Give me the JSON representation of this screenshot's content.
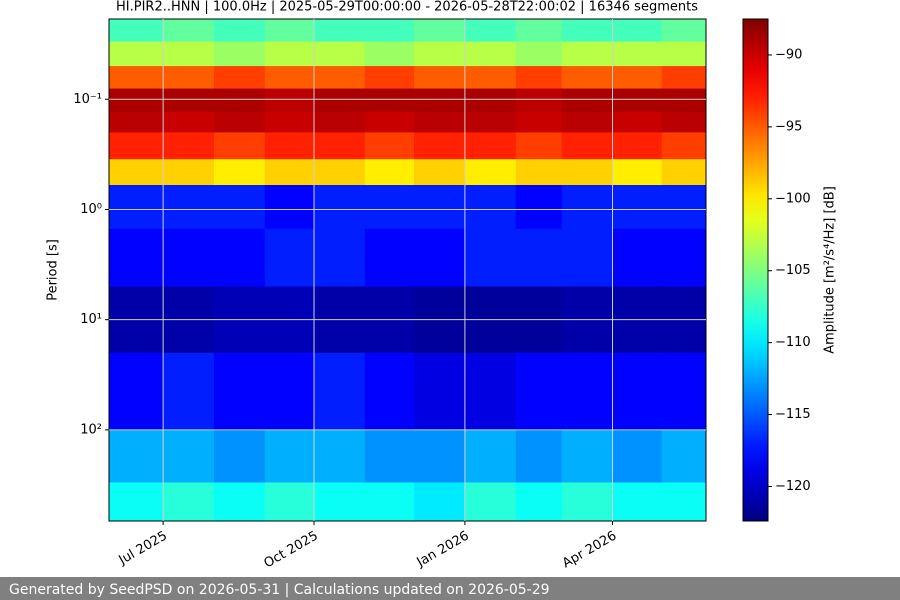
{
  "chart_data": {
    "type": "heatmap",
    "title": "HI.PIR2..HNN | 100.0Hz | 2025-05-29T00:00:00 - 2026-05-28T22:00:02 | 16346 segments",
    "ylabel": "Period [s]",
    "colorbar_label": "Amplitude [m²/s⁴/Hz] [dB]",
    "colormap": "jet",
    "x": [
      "2025-06",
      "2025-07",
      "2025-08",
      "2025-09",
      "2025-10",
      "2025-11",
      "2025-12",
      "2026-01",
      "2026-02",
      "2026-03",
      "2026-04",
      "2026-05"
    ],
    "xlim": [
      "2025-05-29",
      "2026-05-28"
    ],
    "xticks": [
      {
        "value": "2025-07",
        "label": "Jul 2025"
      },
      {
        "value": "2025-10",
        "label": "Oct 2025"
      },
      {
        "value": "2026-01",
        "label": "Jan 2026"
      },
      {
        "value": "2026-04",
        "label": "Apr 2026"
      }
    ],
    "ybins": [
      0.0187,
      0.03,
      0.05,
      0.08,
      0.13,
      0.2,
      0.35,
      0.6,
      1.5,
      5,
      20,
      100,
      300,
      671
    ],
    "ylim": [
      0.0187,
      671
    ],
    "yscale": "log",
    "yinverted": true,
    "yticks": [
      {
        "value": 0.1,
        "label": "10⁻¹"
      },
      {
        "value": 1,
        "label": "10⁰"
      },
      {
        "value": 10,
        "label": "10¹"
      },
      {
        "value": 100,
        "label": "10²"
      }
    ],
    "grid": true,
    "values": [
      [
        -107,
        -106,
        -107,
        -106,
        -107,
        -107,
        -106,
        -107,
        -106,
        -107,
        -107,
        -106
      ],
      [
        -103,
        -103,
        -104,
        -103,
        -103,
        -104,
        -103,
        -103,
        -104,
        -103,
        -103,
        -103
      ],
      [
        -95,
        -95,
        -94,
        -95,
        -95,
        -94,
        -95,
        -95,
        -94,
        -95,
        -95,
        -94
      ],
      [
        -89,
        -89,
        -89,
        -89.5,
        -89,
        -89,
        -89,
        -89,
        -89.5,
        -89,
        -89,
        -89
      ],
      [
        -89.5,
        -90,
        -89.5,
        -90,
        -89.5,
        -90,
        -89.5,
        -89.5,
        -90,
        -89.5,
        -90,
        -89.5
      ],
      [
        -93,
        -93,
        -94,
        -93,
        -93,
        -94,
        -93,
        -93,
        -94,
        -93,
        -93,
        -94
      ],
      [
        -99,
        -99,
        -100,
        -99,
        -99,
        -100,
        -99,
        -100,
        -99,
        -99,
        -100,
        -99
      ],
      [
        -117,
        -117,
        -117,
        -118,
        -117,
        -117,
        -117,
        -117,
        -118,
        -117,
        -117,
        -117
      ],
      [
        -118,
        -118,
        -118,
        -117,
        -117,
        -118,
        -118,
        -117,
        -117,
        -117,
        -118,
        -118
      ],
      [
        -121,
        -121,
        -120.5,
        -120.5,
        -121,
        -121,
        -121.5,
        -121.5,
        -121.5,
        -121,
        -121,
        -121
      ],
      [
        -118,
        -117,
        -118,
        -118,
        -117,
        -118,
        -119,
        -119,
        -118,
        -118,
        -118,
        -118
      ],
      [
        -112,
        -112,
        -113,
        -112,
        -112,
        -113,
        -113,
        -112,
        -113,
        -112,
        -113,
        -112
      ],
      [
        -109,
        -108,
        -109,
        -108,
        -109,
        -109,
        -110,
        -108,
        -109,
        -108,
        -109,
        -109
      ]
    ],
    "clim": [
      -122.4,
      -87.5
    ],
    "cticks": [
      {
        "value": -90,
        "label": "−90"
      },
      {
        "value": -95,
        "label": "−95"
      },
      {
        "value": -100,
        "label": "−100"
      },
      {
        "value": -105,
        "label": "−105"
      },
      {
        "value": -110,
        "label": "−110"
      },
      {
        "value": -115,
        "label": "−115"
      },
      {
        "value": -120,
        "label": "−120"
      }
    ]
  },
  "footer": "Generated by SeedPSD on 2026-05-31 | Calculations updated on 2026-05-29"
}
